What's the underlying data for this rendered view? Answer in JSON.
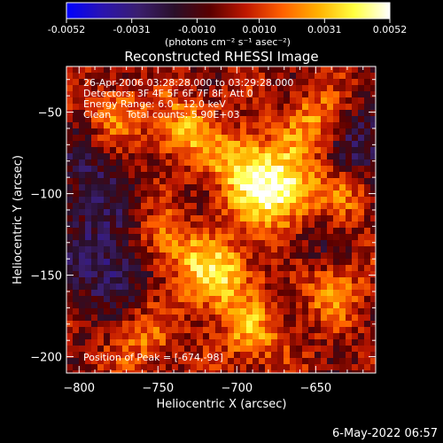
{
  "colorbar": {
    "ticks": [
      "-0.0052",
      "-0.0031",
      "-0.0010",
      "0.0010",
      "0.0031",
      "0.0052"
    ],
    "range": [
      -0.0052,
      0.0052
    ],
    "units_label": "(photons cm⁻² s⁻¹ asec⁻²)",
    "colormap": [
      "#0000ff",
      "#2a14b0",
      "#3a1e6e",
      "#2a0f2a",
      "#5a0000",
      "#c01800",
      "#ff6000",
      "#ffb000",
      "#ffff40",
      "#ffffff"
    ]
  },
  "chart_data": {
    "type": "heatmap",
    "title": "Reconstructed RHESSI Image",
    "xlabel": "Heliocentric X (arcsec)",
    "ylabel": "Heliocentric Y (arcsec)",
    "xlim": [
      -808,
      -612
    ],
    "ylim": [
      -210,
      -22
    ],
    "xticks": [
      -800,
      -750,
      -700,
      -650
    ],
    "yticks": [
      -50,
      -100,
      -150,
      -200
    ],
    "grid": false,
    "bright_sources": [
      {
        "x": -674,
        "y": -98,
        "intensity": 1.0,
        "sigma": 18
      },
      {
        "x": -700,
        "y": -80,
        "intensity": 0.55,
        "sigma": 14
      },
      {
        "x": -714,
        "y": -150,
        "intensity": 0.8,
        "sigma": 16
      },
      {
        "x": -748,
        "y": -130,
        "intensity": 0.55,
        "sigma": 14
      },
      {
        "x": -735,
        "y": -60,
        "intensity": 0.55,
        "sigma": 14
      },
      {
        "x": -775,
        "y": -50,
        "intensity": 0.45,
        "sigma": 12
      },
      {
        "x": -650,
        "y": -55,
        "intensity": 0.5,
        "sigma": 14
      },
      {
        "x": -640,
        "y": -160,
        "intensity": 0.45,
        "sigma": 14
      },
      {
        "x": -690,
        "y": -185,
        "intensity": 0.5,
        "sigma": 14
      },
      {
        "x": -760,
        "y": -190,
        "intensity": 0.4,
        "sigma": 14
      },
      {
        "x": -630,
        "y": -100,
        "intensity": 0.35,
        "sigma": 12
      }
    ],
    "dim_regions": [
      {
        "x": -780,
        "y": -140,
        "intensity": -0.55,
        "sigma": 22
      },
      {
        "x": -620,
        "y": -70,
        "intensity": -0.45,
        "sigma": 18
      },
      {
        "x": -795,
        "y": -90,
        "intensity": -0.35,
        "sigma": 16
      },
      {
        "x": -655,
        "y": -130,
        "intensity": -0.3,
        "sigma": 14
      }
    ],
    "annotations": [
      "26-Apr-2006 03:28:28.000 to 03:29:28.000",
      "Detectors: 3F 4F 5F 6F 7F 8F, Att 0",
      "Energy Range: 6.0 - 12.0 keV",
      "Clean     Total counts: 5.90E+03"
    ],
    "peak_label": "Position of Peak = [-674,-98]"
  },
  "timestamp": "6-May-2022 06:57"
}
